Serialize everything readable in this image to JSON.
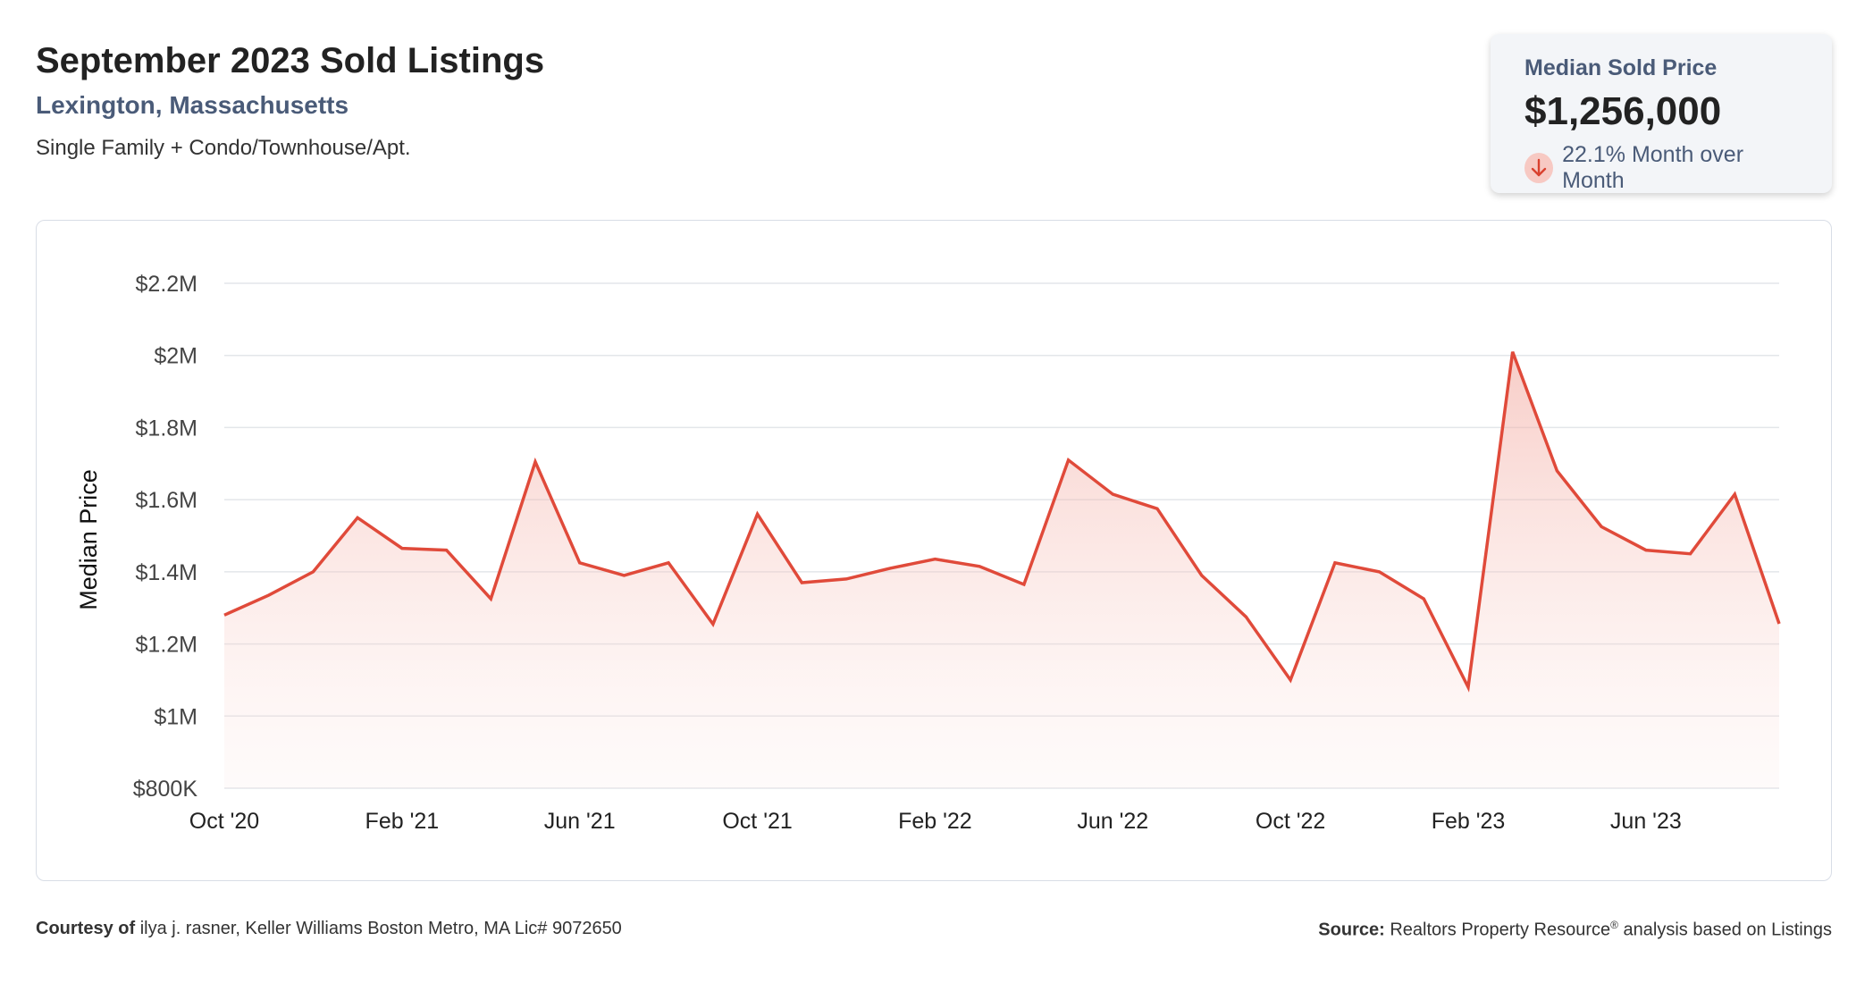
{
  "header": {
    "title": "September 2023 Sold Listings",
    "location": "Lexington, Massachusetts",
    "property_types": "Single Family + Condo/Townhouse/Apt."
  },
  "stat": {
    "label": "Median Sold Price",
    "value": "$1,256,000",
    "change": "22.1% Month over Month",
    "direction_icon": "arrow-down-icon"
  },
  "footer": {
    "courtesy_label": "Courtesy of",
    "courtesy_text": "ilya j. rasner, Keller Williams Boston Metro, MA Lic# 9072650",
    "source_label": "Source:",
    "source_text_1": "Realtors Property Resource",
    "source_reg": "®",
    "source_text_2": " analysis based on Listings"
  },
  "colors": {
    "line": "#e04a3a",
    "fill": "#f8d5cf",
    "grid": "#e3e6ea",
    "subtitle": "#4a5b78"
  },
  "chart_data": {
    "type": "area",
    "ylabel": "Median Price",
    "xlabel": "",
    "ylim": [
      800000,
      2200000
    ],
    "yticks": [
      800000,
      1000000,
      1200000,
      1400000,
      1600000,
      1800000,
      2000000,
      2200000
    ],
    "ytick_labels": [
      "$800K",
      "$1M",
      "$1.2M",
      "$1.4M",
      "$1.6M",
      "$1.8M",
      "$2M",
      "$2.2M"
    ],
    "xtick_labels": [
      "Oct '20",
      "Feb '21",
      "Jun '21",
      "Oct '21",
      "Feb '22",
      "Jun '22",
      "Oct '22",
      "Feb '23",
      "Jun '23"
    ],
    "xtick_index": [
      0,
      4,
      8,
      12,
      16,
      20,
      24,
      28,
      32
    ],
    "x": [
      "Oct 2020",
      "Nov 2020",
      "Dec 2020",
      "Jan 2021",
      "Feb 2021",
      "Mar 2021",
      "Apr 2021",
      "May 2021",
      "Jun 2021",
      "Jul 2021",
      "Aug 2021",
      "Sep 2021",
      "Oct 2021",
      "Nov 2021",
      "Dec 2021",
      "Jan 2022",
      "Feb 2022",
      "Mar 2022",
      "Apr 2022",
      "May 2022",
      "Jun 2022",
      "Jul 2022",
      "Aug 2022",
      "Sep 2022",
      "Oct 2022",
      "Nov 2022",
      "Dec 2022",
      "Jan 2023",
      "Feb 2023",
      "Mar 2023",
      "Apr 2023",
      "May 2023",
      "Jun 2023",
      "Jul 2023",
      "Aug 2023",
      "Sep 2023"
    ],
    "series": [
      {
        "values": [
          1280000,
          1335000,
          1400000,
          1550000,
          1465000,
          1460000,
          1325000,
          1705000,
          1425000,
          1390000,
          1425000,
          1255000,
          1560000,
          1370000,
          1380000,
          1410000,
          1435000,
          1415000,
          1365000,
          1710000,
          1615000,
          1575000,
          1390000,
          1275000,
          1100000,
          1425000,
          1400000,
          1325000,
          1080000,
          2010000,
          1680000,
          1525000,
          1460000,
          1450000,
          1615000,
          1256000
        ]
      }
    ],
    "grid": true,
    "legend": "none"
  }
}
